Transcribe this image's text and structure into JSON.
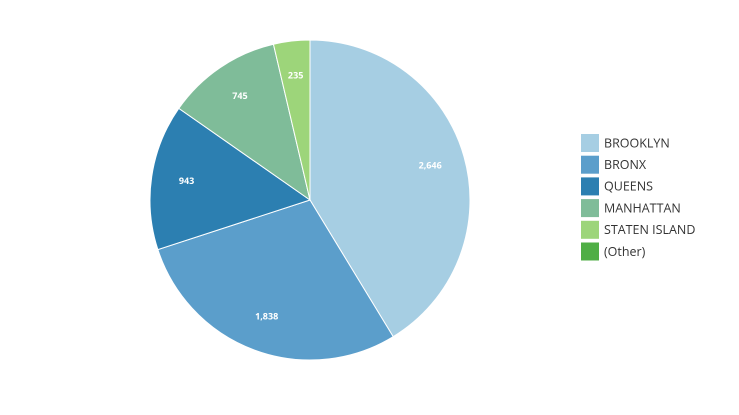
{
  "chart_data": {
    "type": "pie",
    "categories": [
      "BROOKLYN",
      "BRONX",
      "QUEENS",
      "MANHATTAN",
      "STATEN ISLAND",
      "(Other)"
    ],
    "values": [
      2646,
      1838,
      943,
      745,
      235,
      0
    ],
    "value_labels": [
      "2,646",
      "1,838",
      "943",
      "745",
      "235",
      null
    ],
    "colors": [
      "#a6cee3",
      "#5b9ecb",
      "#2c7fb1",
      "#7fbc99",
      "#9dd57a",
      "#4fae45"
    ],
    "legend": "right"
  }
}
